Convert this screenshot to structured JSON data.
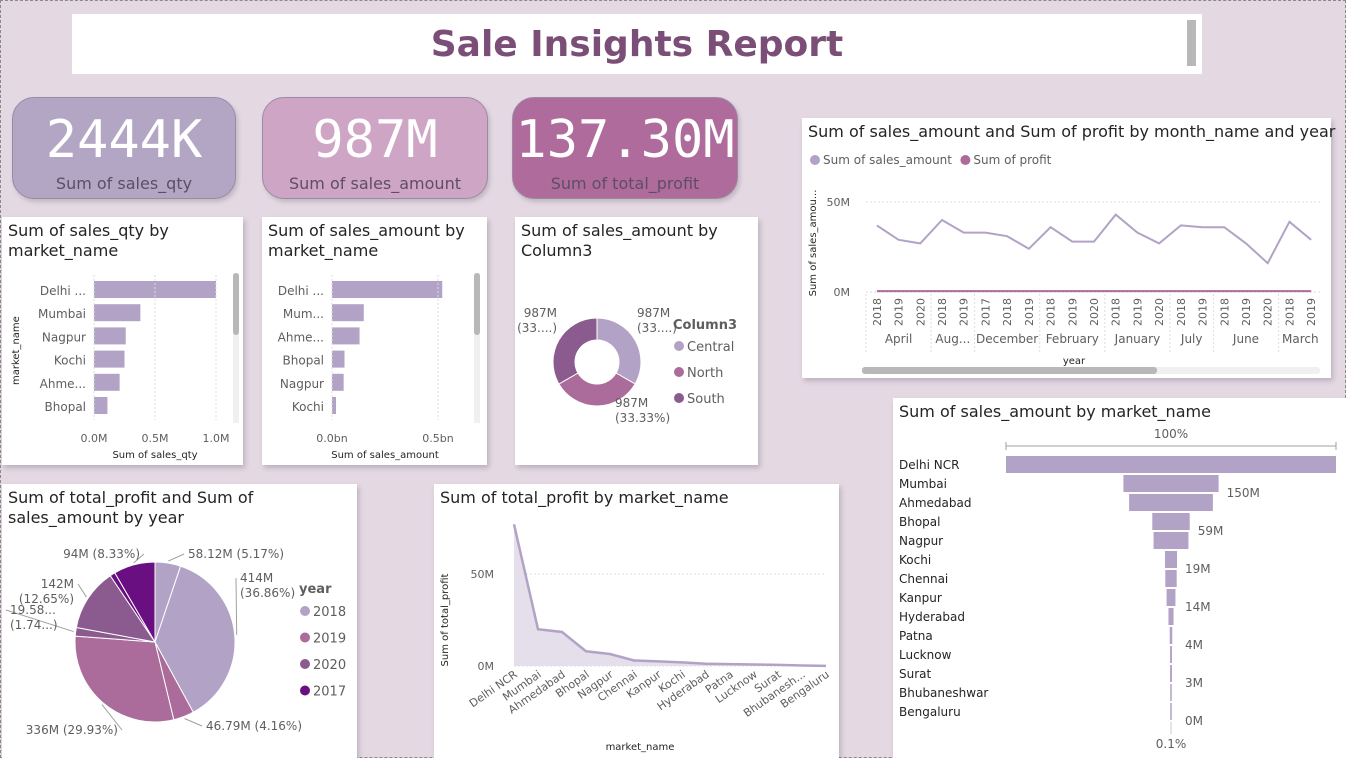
{
  "header": {
    "title": "Sale Insights Report"
  },
  "colors": {
    "light": "#b2a3c6",
    "mid": "#ab6b9b",
    "dark": "#8b5b8f",
    "purple": "#6a0f81",
    "kpi1": "#b3a6c4",
    "kpi2": "#cfa5c6",
    "kpi3": "#ae6b9b"
  },
  "kpis": [
    {
      "value": "2444K",
      "label": "Sum of sales_qty"
    },
    {
      "value": "987M",
      "label": "Sum of sales_amount"
    },
    {
      "value": "137.30M",
      "label": "Sum of total_profit"
    }
  ],
  "chart_data": [
    {
      "id": "qty-by-market",
      "type": "bar",
      "title": "Sum of sales_qty by market_name",
      "xlabel": "Sum of sales_qty",
      "ylabel": "market_name",
      "categories": [
        "Delhi ...",
        "Mumbai",
        "Nagpur",
        "Kochi",
        "Ahme...",
        "Bhopal"
      ],
      "values": [
        1.0,
        0.38,
        0.26,
        0.25,
        0.21,
        0.11
      ],
      "ticks": [
        "0.0M",
        "0.5M",
        "1.0M"
      ],
      "xlim": [
        0,
        1.0
      ]
    },
    {
      "id": "amount-by-market",
      "type": "bar",
      "title": "Sum of sales_amount by market_name",
      "xlabel": "Sum of sales_amount",
      "ylabel": "",
      "categories": [
        "Delhi ...",
        "Mum...",
        "Ahme...",
        "Bhopal",
        "Nagpur",
        "Kochi"
      ],
      "values": [
        0.52,
        0.15,
        0.13,
        0.059,
        0.055,
        0.019
      ],
      "ticks": [
        "0.0bn",
        "0.5bn"
      ],
      "xlim": [
        0,
        0.5
      ]
    },
    {
      "id": "amount-by-zone",
      "type": "pie",
      "title": "Sum of sales_amount by Column3",
      "legend_title": "Column3",
      "labels": [
        "Central",
        "North",
        "South"
      ],
      "values": [
        33.33,
        33.33,
        33.33
      ],
      "data_labels": [
        [
          "987M",
          "(33....)"
        ],
        [
          "987M",
          "(33.33%)"
        ],
        [
          "987M",
          "(33....)"
        ]
      ]
    },
    {
      "id": "amount-profit-by-month",
      "type": "line",
      "title": "Sum of sales_amount and Sum of profit by month_name and year",
      "ylabel": "Sum of sales_amou...",
      "xlabel": "year",
      "series": [
        {
          "name": "Sum of sales_amount",
          "values": [
            37,
            29,
            27,
            40,
            33,
            33,
            31,
            24,
            36,
            28,
            28,
            43,
            33,
            27,
            37,
            36,
            36,
            27,
            16,
            39,
            29
          ]
        },
        {
          "name": "Sum of profit",
          "values": [
            0.5,
            0.5,
            0.5,
            0.5,
            0.5,
            0.5,
            0.5,
            0.5,
            0.5,
            0.5,
            0.5,
            0.5,
            0.5,
            0.5,
            0.5,
            0.5,
            0.5,
            0.5,
            0.5,
            0.5,
            0.5
          ]
        }
      ],
      "x_years": [
        "2018",
        "2019",
        "2020",
        "2018",
        "2019",
        "2017",
        "2018",
        "2019",
        "2018",
        "2019",
        "2020",
        "2018",
        "2019",
        "2020",
        "2018",
        "2019",
        "2018",
        "2019",
        "2020",
        "2018",
        "2019"
      ],
      "groups": [
        {
          "label": "April",
          "count": 3
        },
        {
          "label": "Aug...",
          "count": 2
        },
        {
          "label": "December",
          "count": 3
        },
        {
          "label": "February",
          "count": 3
        },
        {
          "label": "January",
          "count": 3
        },
        {
          "label": "July",
          "count": 2
        },
        {
          "label": "June",
          "count": 3
        },
        {
          "label": "March",
          "count": 2
        }
      ],
      "ticks": [
        "0M",
        "50M"
      ],
      "ylim": [
        0,
        50
      ]
    },
    {
      "id": "amount-funnel",
      "type": "bar",
      "title": "Sum of sales_amount by market_name",
      "top_label": "100%",
      "bottom_label": "0.1%",
      "categories": [
        "Delhi NCR",
        "Mumbai",
        "Ahmedabad",
        "Bhopal",
        "Nagpur",
        "Kochi",
        "Chennai",
        "Kanpur",
        "Hyderabad",
        "Patna",
        "Lucknow",
        "Surat",
        "Bhubaneshwar",
        "Bengaluru"
      ],
      "values": [
        520,
        150,
        132,
        59,
        55,
        19,
        18,
        14,
        8,
        4,
        3,
        3,
        1,
        0.5
      ],
      "data_labels": [
        "",
        "150M",
        "",
        "59M",
        "",
        "19M",
        "",
        "14M",
        "",
        "4M",
        "",
        "3M",
        "",
        "0M"
      ]
    },
    {
      "id": "profit-amount-by-year",
      "type": "pie",
      "title": "Sum of total_profit and Sum of sales_amount by year",
      "legend_title": "year",
      "labels": [
        "2018",
        "2019",
        "2020",
        "2017"
      ],
      "slices": [
        {
          "year": "2018",
          "value": 58.12,
          "label": "58.12M (5.17%)"
        },
        {
          "year": "2018",
          "value": 414,
          "label": "414M (36.86%)"
        },
        {
          "year": "2019",
          "value": 46.79,
          "label": "46.79M (4.16%)"
        },
        {
          "year": "2019",
          "value": 336,
          "label": "336M (29.93%)"
        },
        {
          "year": "2020",
          "value": 19.58,
          "label": "19.58... (1.74...)"
        },
        {
          "year": "2020",
          "value": 142,
          "label": "142M (12.65%)"
        },
        {
          "year": "2017",
          "value": 12,
          "label": ""
        },
        {
          "year": "2017",
          "value": 94,
          "label": "94M (8.33%)"
        }
      ]
    },
    {
      "id": "profit-by-market",
      "type": "area",
      "title": "Sum of total_profit by market_name",
      "xlabel": "market_name",
      "ylabel": "Sum of total_profit",
      "categories": [
        "Delhi NCR",
        "Mumbai",
        "Ahmedabad",
        "Bhopal",
        "Nagpur",
        "Chennai",
        "Kanpur",
        "Kochi",
        "Hyderabad",
        "Patna",
        "Lucknow",
        "Surat",
        "Bhubanesh...",
        "Bengaluru"
      ],
      "values": [
        77,
        20,
        18.5,
        8,
        6.5,
        3,
        2.5,
        2,
        1.2,
        1,
        0.8,
        0.6,
        0.3,
        0.1
      ],
      "ticks": [
        "0M",
        "50M"
      ],
      "ylim": [
        0,
        50
      ]
    }
  ]
}
